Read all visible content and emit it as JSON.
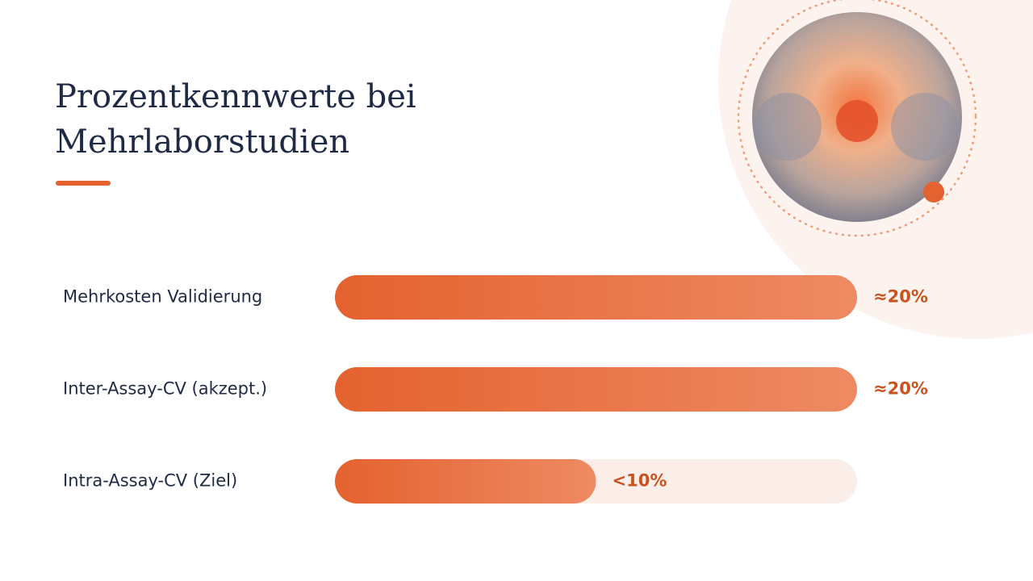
{
  "chart_data": {
    "type": "bar",
    "orientation": "horizontal",
    "title": "Prozentkennwerte bei Mehrlaborstudien",
    "categories": [
      "Mehrkosten Validierung",
      "Inter-Assay-CV (akzept.)",
      "Intra-Assay-CV (Ziel)"
    ],
    "values": [
      20,
      20,
      10
    ],
    "value_labels": [
      "≈20%",
      "≈20%",
      "<10%"
    ],
    "color": "#e4622f",
    "xlim": [
      0,
      20
    ]
  }
}
